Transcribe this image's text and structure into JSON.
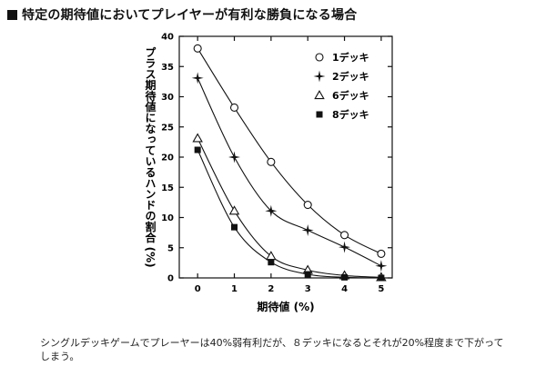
{
  "header": {
    "title": "特定の期待値においてプレイヤーが有利な勝負になる場合"
  },
  "chart_data": {
    "type": "line",
    "title": "特定の期待値においてプレイヤーが有利な勝負になる場合",
    "xlabel": "期待値 (%)",
    "ylabel": "プラス期待値になっているハンドの割合 (%)",
    "x": [
      0,
      1,
      2,
      3,
      4,
      5
    ],
    "xticks": [
      "0",
      "1",
      "2",
      "3",
      "4",
      "5"
    ],
    "yticks": [
      "0",
      "5",
      "10",
      "15",
      "20",
      "25",
      "30",
      "35",
      "40"
    ],
    "xlim": [
      -0.5,
      5.3
    ],
    "ylim": [
      0,
      40
    ],
    "grid": false,
    "legend": "top-right",
    "series": [
      {
        "name": "1デッキ",
        "marker": "circle-open",
        "values": [
          38,
          28.2,
          19.2,
          12.1,
          7.1,
          4
        ]
      },
      {
        "name": "2デッキ",
        "marker": "star",
        "values": [
          33.1,
          20,
          11.1,
          7.9,
          5.1,
          2
        ]
      },
      {
        "name": "6デッキ",
        "marker": "triangle-open",
        "values": [
          23.1,
          11.1,
          3.6,
          1.3,
          0.4,
          0.1
        ]
      },
      {
        "name": "8デッキ",
        "marker": "square-filled",
        "values": [
          21.2,
          8.4,
          2.6,
          0.6,
          0.1,
          0
        ]
      }
    ]
  },
  "caption": {
    "text": "シングルデッキゲームでプレーヤーは40%弱有利だが、８デッキになるとそれが20%程度まで下がってしまう。"
  }
}
